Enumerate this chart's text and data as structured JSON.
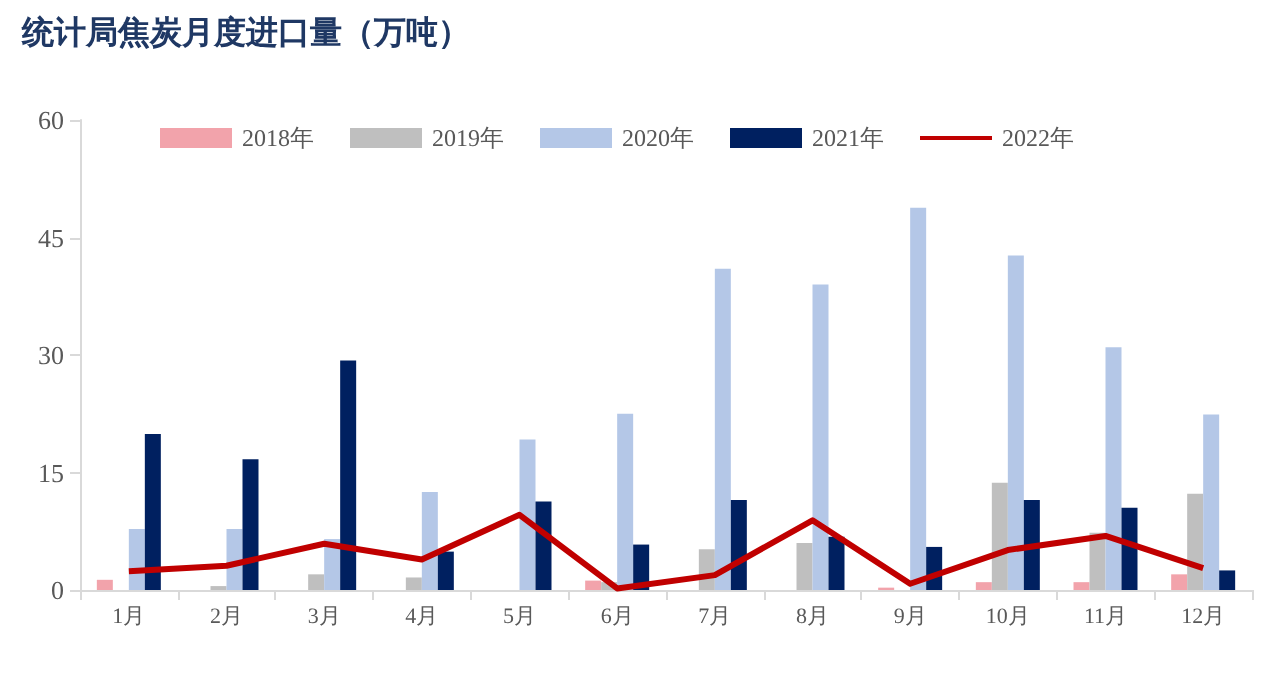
{
  "chart_data": {
    "type": "bar",
    "title": "统计局焦炭月度进口量（万吨）",
    "categories": [
      "1月",
      "2月",
      "3月",
      "4月",
      "5月",
      "6月",
      "7月",
      "8月",
      "9月",
      "10月",
      "11月",
      "12月"
    ],
    "series": [
      {
        "name": "2018年",
        "color": "#f2a3ab",
        "values": [
          1.3,
          0,
          0,
          0,
          0,
          1.2,
          null,
          null,
          0.3,
          1.0,
          1.0,
          2.0
        ]
      },
      {
        "name": "2019年",
        "color": "#bfbfbf",
        "values": [
          null,
          0.5,
          2.0,
          1.6,
          0,
          1.0,
          5.2,
          6.0,
          null,
          13.7,
          7.3,
          12.3
        ]
      },
      {
        "name": "2020年",
        "color": "#b4c7e7",
        "values": [
          7.8,
          7.8,
          6.5,
          12.5,
          19.2,
          22.5,
          41,
          39,
          48.8,
          42.7,
          31,
          22.4
        ]
      },
      {
        "name": "2021年",
        "color": "#002060",
        "values": [
          19.9,
          16.7,
          29.3,
          4.9,
          11.3,
          5.8,
          11.5,
          6.8,
          5.5,
          11.5,
          10.5,
          2.5
        ]
      },
      {
        "name": "2022年",
        "type": "line",
        "color": "#c00000",
        "values": [
          2.4,
          3.1,
          5.9,
          3.9,
          9.6,
          0.2,
          1.9,
          8.9,
          0.8,
          5.1,
          6.9,
          2.8
        ]
      }
    ],
    "ylim": [
      0,
      60
    ],
    "yticks": [
      0,
      15,
      30,
      45,
      60
    ],
    "grid": false,
    "legend": "top",
    "marker": "none",
    "line_style": "solid"
  }
}
